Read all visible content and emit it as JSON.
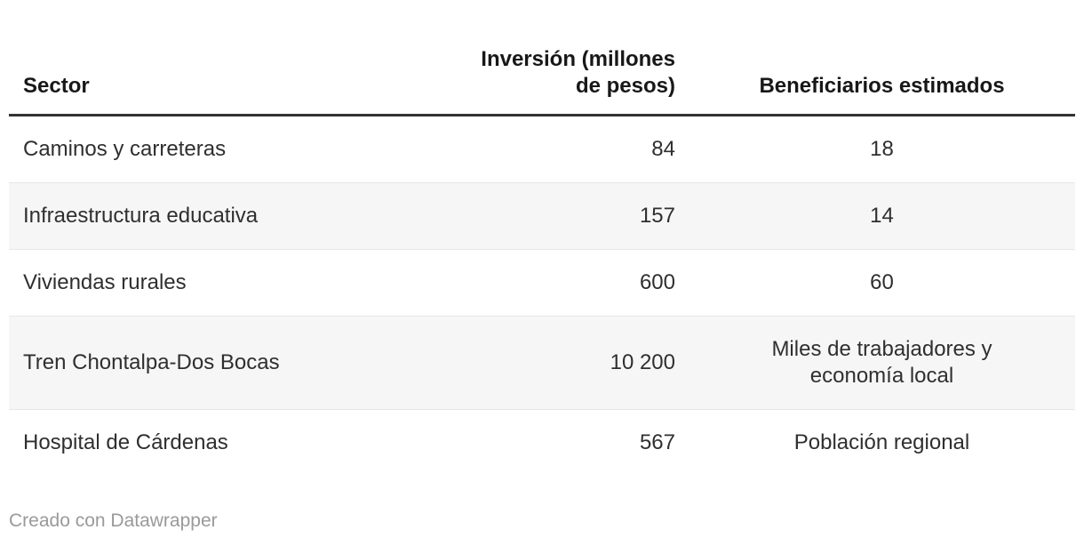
{
  "chart_data": {
    "type": "table",
    "columns": [
      "Sector",
      "Inversión (millones de pesos)",
      "Beneficiarios estimados"
    ],
    "rows": [
      [
        "Caminos y carreteras",
        "84",
        "18"
      ],
      [
        "Infraestructura educativa",
        "157",
        "14"
      ],
      [
        "Viviendas rurales",
        "600",
        "60"
      ],
      [
        "Tren Chontalpa-Dos Bocas",
        "10 200",
        "Miles de trabajadores y economía local"
      ],
      [
        "Hospital de Cárdenas",
        "567",
        "Población regional"
      ]
    ],
    "layout_hints": {
      "column_align": [
        "left",
        "right",
        "center"
      ],
      "zebra_striping": true,
      "header_rule": "thick dark line under header",
      "grid": "horizontal row dividers only"
    }
  },
  "table": {
    "header": {
      "sector": "Sector",
      "inversion": "Inversión (millones\nde pesos)",
      "beneficiarios": "Beneficiarios estimados"
    },
    "rows": [
      {
        "sector": "Caminos y carreteras",
        "inversion": "84",
        "beneficiarios": "18"
      },
      {
        "sector": "Infraestructura educativa",
        "inversion": "157",
        "beneficiarios": "14"
      },
      {
        "sector": "Viviendas rurales",
        "inversion": "600",
        "beneficiarios": "60"
      },
      {
        "sector": "Tren Chontalpa-Dos Bocas",
        "inversion": "10 200",
        "beneficiarios": "Miles de trabajadores y\neconomía local"
      },
      {
        "sector": "Hospital de Cárdenas",
        "inversion": "567",
        "beneficiarios": "Población regional"
      }
    ]
  },
  "footer": {
    "attribution": "Creado con Datawrapper"
  },
  "colors": {
    "background": "#ffffff",
    "header_text": "#181818",
    "body_text": "#2f2f2f",
    "header_rule": "#333333",
    "row_divider": "#e7e7e7",
    "zebra_row_bg": "#f6f6f6",
    "attribution_text": "#9a9a9a"
  }
}
